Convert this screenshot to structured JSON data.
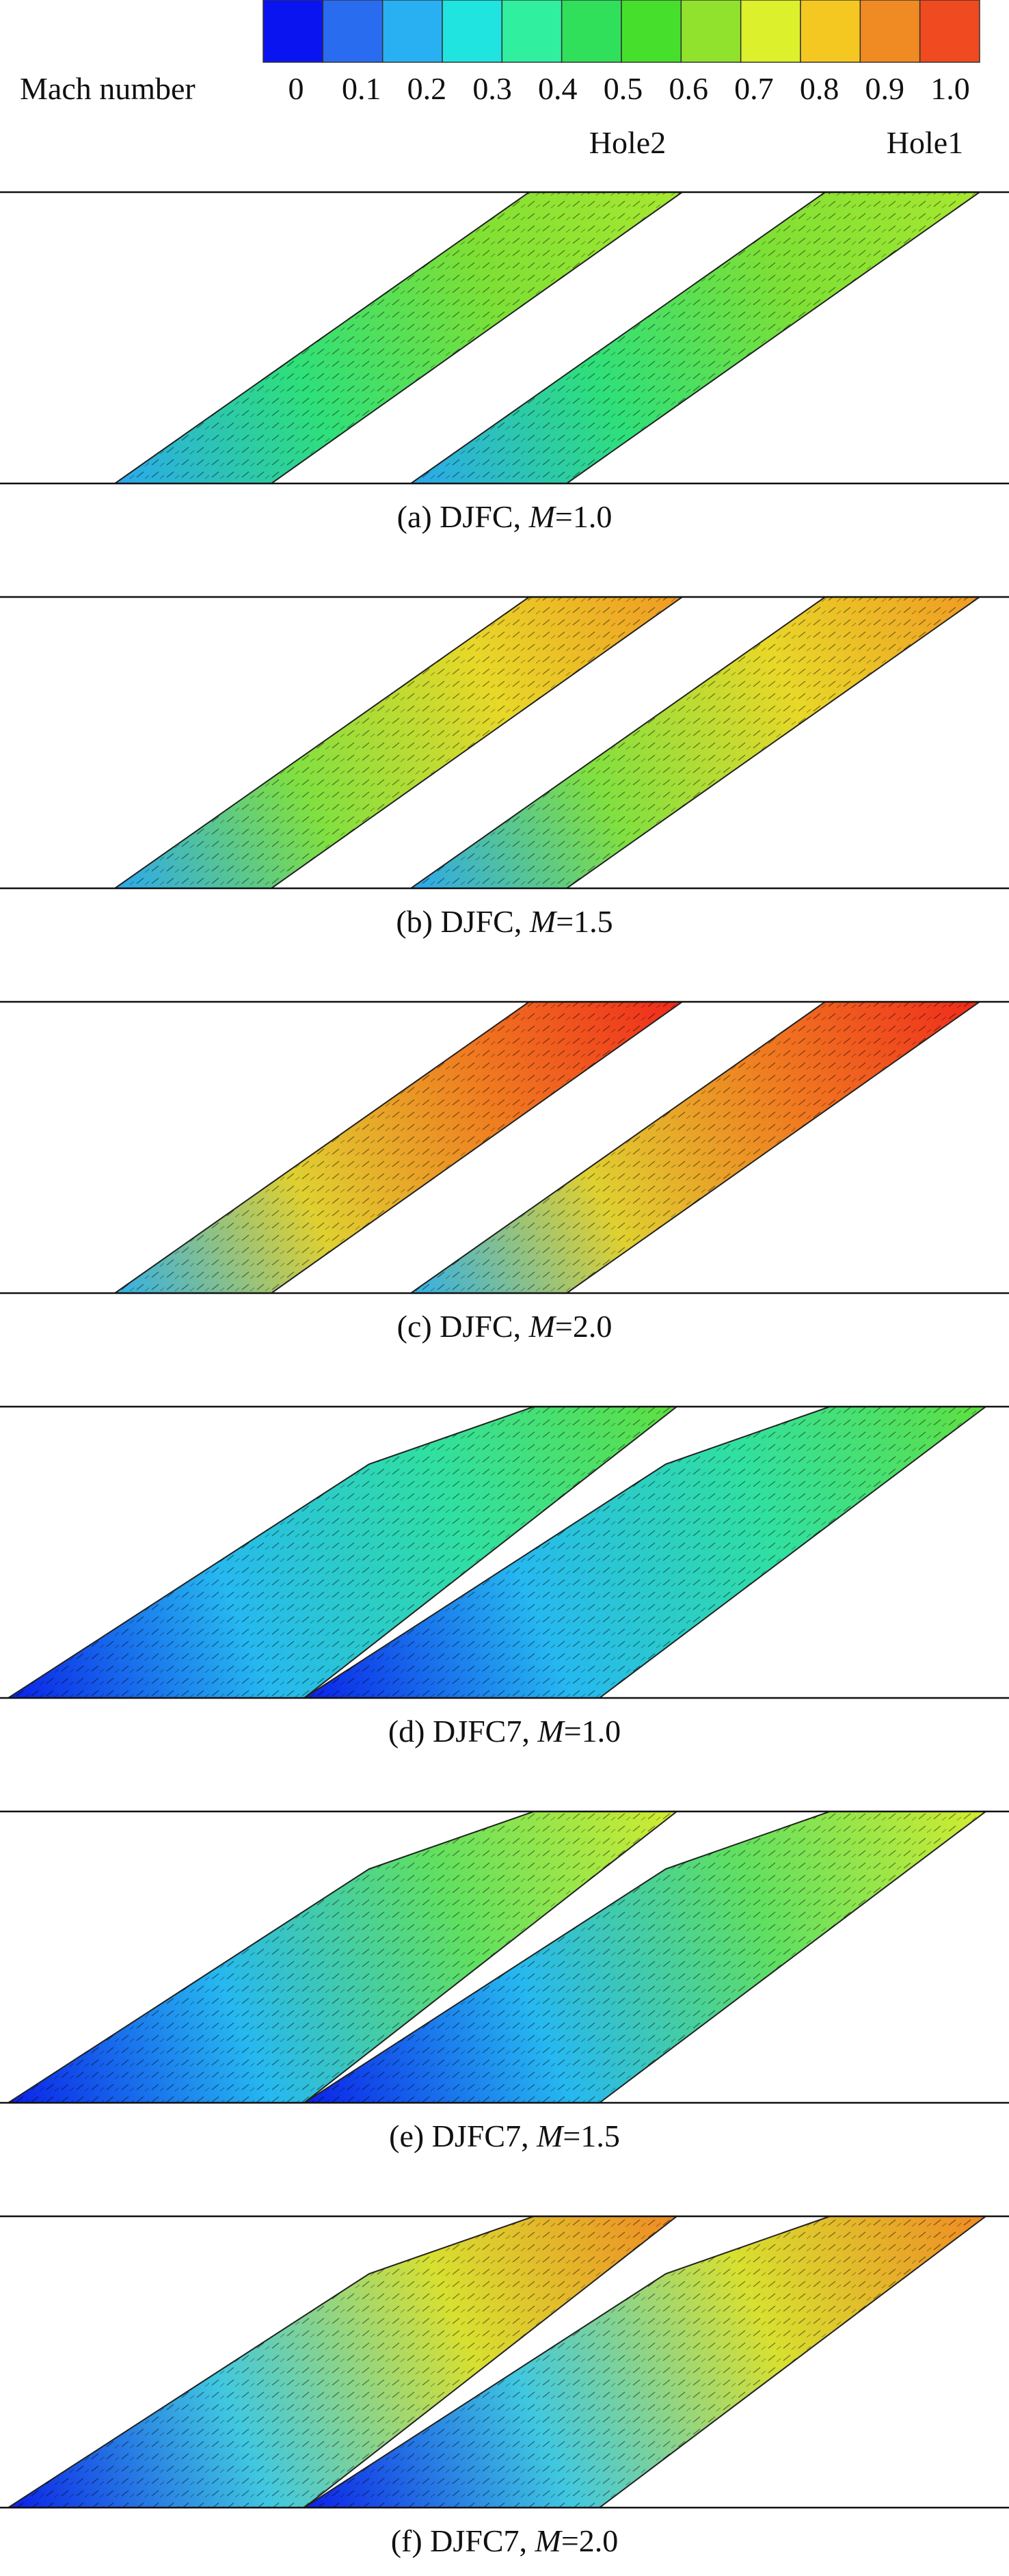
{
  "colorbar": {
    "title": "Mach number",
    "labels": [
      "0",
      "0.1",
      "0.2",
      "0.3",
      "0.4",
      "0.5",
      "0.6",
      "0.7",
      "0.8",
      "0.9",
      "1.0"
    ]
  },
  "hole_labels": [
    "Hole2",
    "Hole1"
  ],
  "panels": [
    {
      "prefix": "(a) DJFC, ",
      "italic": "M",
      "suffix": "=1.0"
    },
    {
      "prefix": "(b) DJFC, ",
      "italic": "M",
      "suffix": "=1.5"
    },
    {
      "prefix": "(c) DJFC, ",
      "italic": "M",
      "suffix": "=2.0"
    },
    {
      "prefix": "(d) DJFC7, ",
      "italic": "M",
      "suffix": "=1.0"
    },
    {
      "prefix": "(e) DJFC7, ",
      "italic": "M",
      "suffix": "=1.5"
    },
    {
      "prefix": "(f) DJFC7, ",
      "italic": "M",
      "suffix": "=2.0"
    }
  ]
}
